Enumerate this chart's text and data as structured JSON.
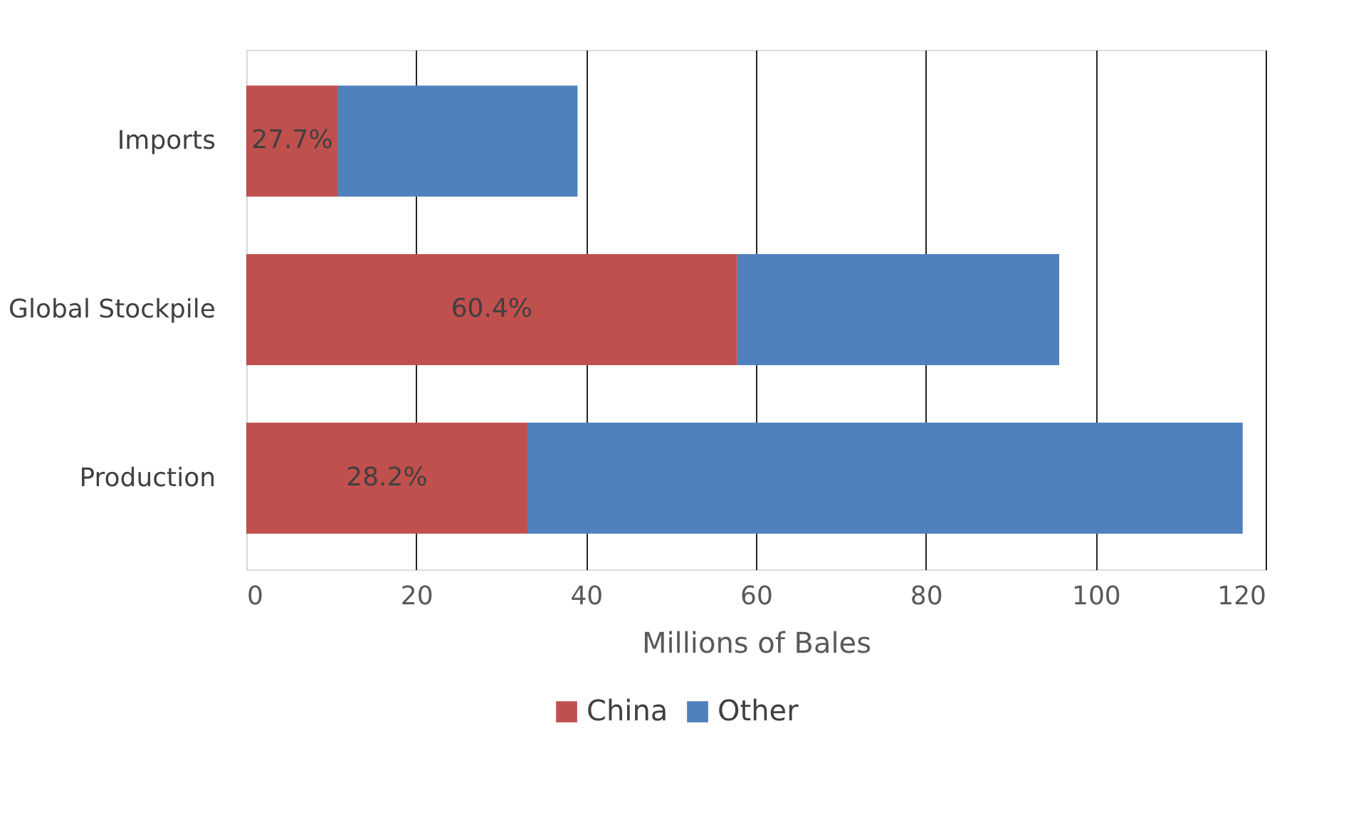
{
  "chart_data": {
    "type": "bar",
    "orientation": "horizontal",
    "stacked": true,
    "categories": [
      "Imports",
      "Global Stockpile",
      "Production"
    ],
    "series": [
      {
        "name": "China",
        "color": "#c0504d",
        "values": [
          10.8,
          57.8,
          33.1
        ]
      },
      {
        "name": "Other",
        "color": "#4f81bd",
        "values": [
          28.2,
          37.9,
          84.2
        ]
      }
    ],
    "annotations": [
      "27.7%",
      "60.4%",
      "28.2%"
    ],
    "xlabel": "Millions of Bales",
    "xlim": [
      0,
      120
    ],
    "xticks": [
      0,
      20,
      40,
      60,
      80,
      100,
      120
    ],
    "grid": "x",
    "legend": "bottom"
  }
}
